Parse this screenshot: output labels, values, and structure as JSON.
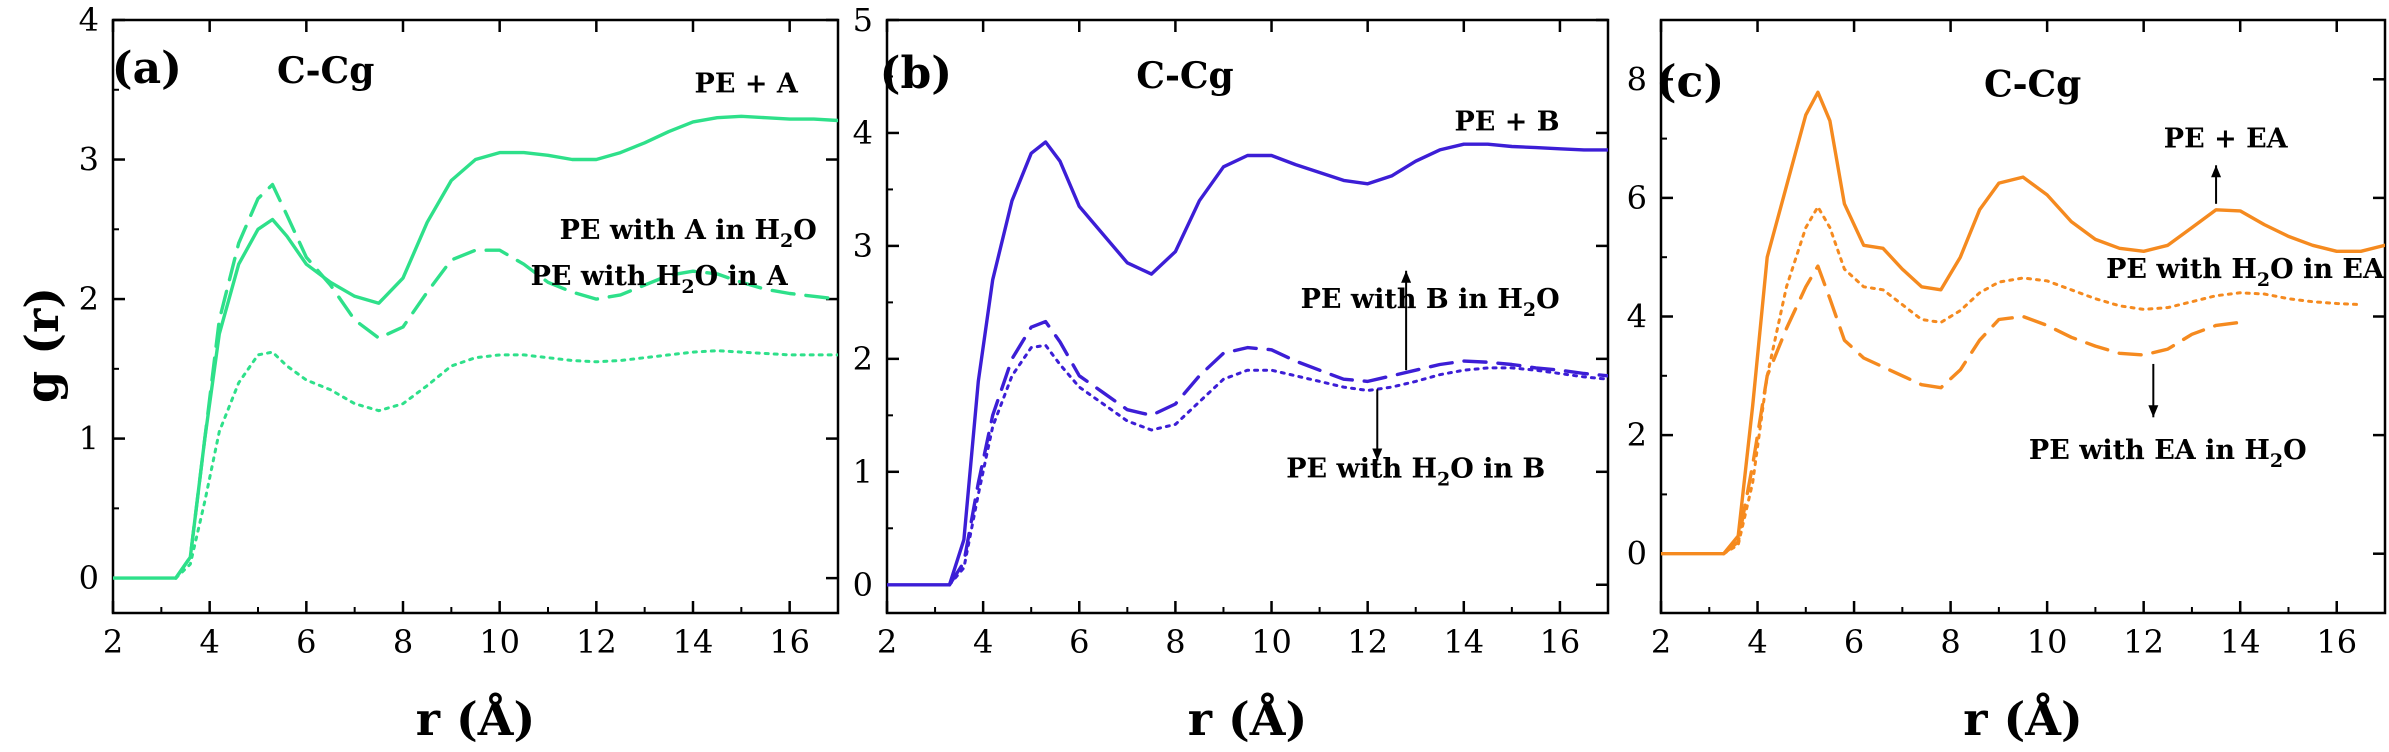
{
  "chart_data": [
    {
      "type": "line",
      "panel_label": "(a)",
      "title": "C-Cg",
      "xlabel": "r (Å)",
      "ylabel": "g (r)",
      "xlim": [
        2,
        17
      ],
      "ylim": [
        -0.25,
        4
      ],
      "xticks": [
        2,
        4,
        6,
        8,
        10,
        12,
        14,
        16
      ],
      "yticks": [
        0,
        1,
        2,
        3,
        4
      ],
      "color": "#2ee08a",
      "series": [
        {
          "name": "PE + A",
          "style": "solid",
          "x": [
            2,
            3.3,
            3.6,
            3.9,
            4.2,
            4.6,
            5.0,
            5.3,
            5.6,
            6.0,
            6.5,
            7.0,
            7.5,
            8.0,
            8.5,
            9.0,
            9.5,
            10.0,
            10.5,
            11.0,
            11.5,
            12.0,
            12.5,
            13.0,
            13.5,
            14.0,
            14.5,
            15.0,
            15.5,
            16.0,
            16.5,
            17.0
          ],
          "y": [
            0,
            0,
            0.15,
            1.0,
            1.75,
            2.25,
            2.5,
            2.57,
            2.45,
            2.25,
            2.12,
            2.02,
            1.97,
            2.15,
            2.55,
            2.85,
            3.0,
            3.05,
            3.05,
            3.03,
            3.0,
            3.0,
            3.05,
            3.12,
            3.2,
            3.27,
            3.3,
            3.31,
            3.3,
            3.29,
            3.29,
            3.28
          ]
        },
        {
          "name": "PE with A in H2O",
          "style": "dashed",
          "x": [
            3.3,
            3.6,
            3.9,
            4.2,
            4.6,
            5.0,
            5.3,
            5.6,
            6.0,
            6.5,
            7.0,
            7.5,
            8.0,
            8.5,
            9.0,
            9.5,
            10.0,
            10.5,
            11.0,
            11.5,
            12.0,
            12.5,
            13.0,
            13.5,
            14.0,
            14.5,
            15.0,
            15.5,
            16.0,
            16.5,
            17.0
          ],
          "y": [
            0,
            0.15,
            1.0,
            1.85,
            2.4,
            2.72,
            2.82,
            2.6,
            2.3,
            2.1,
            1.85,
            1.72,
            1.8,
            2.05,
            2.28,
            2.35,
            2.35,
            2.25,
            2.12,
            2.05,
            2.0,
            2.03,
            2.1,
            2.17,
            2.2,
            2.18,
            2.12,
            2.07,
            2.04,
            2.02,
            2.0
          ]
        },
        {
          "name": "PE with H2O in A",
          "style": "dotted",
          "x": [
            3.3,
            3.6,
            3.9,
            4.2,
            4.6,
            5.0,
            5.3,
            5.6,
            6.0,
            6.5,
            7.0,
            7.5,
            8.0,
            8.5,
            9.0,
            9.5,
            10.0,
            10.5,
            11.0,
            11.5,
            12.0,
            12.5,
            13.0,
            13.5,
            14.0,
            14.5,
            15.0,
            15.5,
            16.0,
            16.5,
            17.0
          ],
          "y": [
            0,
            0.1,
            0.55,
            1.05,
            1.4,
            1.6,
            1.62,
            1.52,
            1.42,
            1.35,
            1.25,
            1.2,
            1.25,
            1.38,
            1.52,
            1.58,
            1.6,
            1.6,
            1.58,
            1.56,
            1.55,
            1.56,
            1.58,
            1.6,
            1.62,
            1.63,
            1.62,
            1.61,
            1.6,
            1.6,
            1.6
          ]
        }
      ],
      "annotations": [
        {
          "text": "PE + A",
          "series": "PE + A"
        },
        {
          "text": "PE with A in H",
          "sub": "2",
          "tail": "O",
          "series": "PE with A in H2O"
        },
        {
          "text": "PE with H",
          "sub": "2",
          "tail": "O in A",
          "series": "PE with H2O in A"
        }
      ]
    },
    {
      "type": "line",
      "panel_label": "(b)",
      "title": "C-Cg",
      "xlabel": "r (Å)",
      "ylabel": "",
      "xlim": [
        2,
        17
      ],
      "ylim": [
        -0.25,
        5
      ],
      "xticks": [
        2,
        4,
        6,
        8,
        10,
        12,
        14,
        16
      ],
      "yticks": [
        0,
        1,
        2,
        3,
        4,
        5
      ],
      "color": "#3c1ed6",
      "series": [
        {
          "name": "PE + B",
          "style": "solid",
          "x": [
            2,
            3.3,
            3.6,
            3.9,
            4.2,
            4.6,
            5.0,
            5.3,
            5.6,
            6.0,
            6.5,
            7.0,
            7.5,
            8.0,
            8.5,
            9.0,
            9.5,
            10.0,
            10.5,
            11.0,
            11.5,
            12.0,
            12.5,
            13.0,
            13.5,
            14.0,
            14.5,
            15.0,
            15.5,
            16.0,
            16.5,
            17.0
          ],
          "y": [
            0,
            0,
            0.4,
            1.8,
            2.7,
            3.4,
            3.82,
            3.92,
            3.75,
            3.35,
            3.1,
            2.85,
            2.75,
            2.95,
            3.4,
            3.7,
            3.8,
            3.8,
            3.72,
            3.65,
            3.58,
            3.55,
            3.62,
            3.75,
            3.85,
            3.9,
            3.9,
            3.88,
            3.87,
            3.86,
            3.85,
            3.85
          ]
        },
        {
          "name": "PE with B in H2O",
          "style": "dashed",
          "x": [
            3.3,
            3.6,
            3.9,
            4.2,
            4.6,
            5.0,
            5.3,
            5.6,
            6.0,
            6.5,
            7.0,
            7.5,
            8.0,
            8.5,
            9.0,
            9.5,
            10.0,
            10.5,
            11.0,
            11.5,
            12.0,
            12.5,
            13.0,
            13.5,
            14.0,
            14.5,
            15.0,
            15.5,
            16.0,
            16.5,
            17.0
          ],
          "y": [
            0,
            0.2,
            0.9,
            1.5,
            2.0,
            2.28,
            2.33,
            2.15,
            1.85,
            1.7,
            1.55,
            1.5,
            1.6,
            1.85,
            2.05,
            2.1,
            2.08,
            1.98,
            1.9,
            1.82,
            1.8,
            1.85,
            1.9,
            1.95,
            1.98,
            1.97,
            1.95,
            1.92,
            1.9,
            1.87,
            1.85
          ]
        },
        {
          "name": "PE with H2O in B",
          "style": "dotted",
          "x": [
            3.3,
            3.6,
            3.9,
            4.2,
            4.6,
            5.0,
            5.3,
            5.6,
            6.0,
            6.5,
            7.0,
            7.5,
            8.0,
            8.5,
            9.0,
            9.5,
            10.0,
            10.5,
            11.0,
            11.5,
            12.0,
            12.5,
            13.0,
            13.5,
            14.0,
            14.5,
            15.0,
            15.5,
            16.0,
            16.5,
            17.0
          ],
          "y": [
            0,
            0.15,
            0.8,
            1.4,
            1.85,
            2.1,
            2.12,
            1.95,
            1.75,
            1.6,
            1.45,
            1.37,
            1.42,
            1.62,
            1.82,
            1.9,
            1.9,
            1.85,
            1.8,
            1.75,
            1.72,
            1.75,
            1.8,
            1.86,
            1.9,
            1.92,
            1.92,
            1.9,
            1.87,
            1.84,
            1.82
          ]
        }
      ],
      "annotations": [
        {
          "text": "PE + B",
          "series": "PE + B"
        },
        {
          "text": "PE with B in H",
          "sub": "2",
          "tail": "O",
          "series": "PE with B in H2O"
        },
        {
          "text": "PE with H",
          "sub": "2",
          "tail": "O in B",
          "series": "PE with H2O in B"
        }
      ]
    },
    {
      "type": "line",
      "panel_label": "(c)",
      "title": "C-Cg",
      "xlabel": "r (Å)",
      "ylabel": "",
      "xlim": [
        2,
        17
      ],
      "ylim": [
        -1,
        9
      ],
      "xticks": [
        2,
        4,
        6,
        8,
        10,
        12,
        14,
        16
      ],
      "yticks": [
        0,
        2,
        4,
        6,
        8
      ],
      "color": "#f58a1f",
      "series": [
        {
          "name": "PE + EA",
          "style": "solid",
          "x": [
            2,
            3.3,
            3.6,
            3.9,
            4.2,
            4.6,
            5.0,
            5.25,
            5.5,
            5.8,
            6.2,
            6.6,
            7.0,
            7.4,
            7.8,
            8.2,
            8.6,
            9.0,
            9.5,
            10.0,
            10.5,
            11.0,
            11.5,
            12.0,
            12.5,
            13.0,
            13.5,
            14.0,
            14.5,
            15.0,
            15.5,
            16.0,
            16.5,
            17.0
          ],
          "y": [
            0,
            0,
            0.3,
            2.5,
            5.0,
            6.2,
            7.4,
            7.78,
            7.3,
            5.9,
            5.2,
            5.15,
            4.8,
            4.5,
            4.45,
            5.0,
            5.8,
            6.25,
            6.35,
            6.05,
            5.6,
            5.3,
            5.15,
            5.1,
            5.2,
            5.5,
            5.8,
            5.78,
            5.55,
            5.35,
            5.2,
            5.1,
            5.1,
            5.2
          ]
        },
        {
          "name": "PE with EA in H2O",
          "style": "dashed",
          "x": [
            3.3,
            3.6,
            3.9,
            4.2,
            4.6,
            5.0,
            5.25,
            5.5,
            5.8,
            6.2,
            6.6,
            7.0,
            7.4,
            7.8,
            8.2,
            8.6,
            9.0,
            9.5,
            10.0,
            10.5,
            11.0,
            11.5,
            12.0,
            12.5,
            13.0,
            13.5,
            14.0
          ],
          "y": [
            0,
            0.2,
            1.5,
            3.0,
            3.8,
            4.5,
            4.85,
            4.3,
            3.6,
            3.3,
            3.15,
            3.0,
            2.85,
            2.8,
            3.1,
            3.6,
            3.95,
            4.0,
            3.85,
            3.65,
            3.5,
            3.38,
            3.35,
            3.45,
            3.7,
            3.85,
            3.9
          ]
        },
        {
          "name": "PE with H2O in EA",
          "style": "dotted",
          "x": [
            3.3,
            3.6,
            3.9,
            4.2,
            4.6,
            5.0,
            5.25,
            5.5,
            5.8,
            6.2,
            6.6,
            7.0,
            7.4,
            7.8,
            8.2,
            8.6,
            9.0,
            9.5,
            10.0,
            10.5,
            11.0,
            11.5,
            12.0,
            12.5,
            13.0,
            13.5,
            14.0,
            14.5,
            15.0,
            15.5,
            16.0,
            16.5
          ],
          "y": [
            0,
            0.15,
            1.2,
            3.0,
            4.5,
            5.5,
            5.85,
            5.5,
            4.8,
            4.5,
            4.45,
            4.2,
            3.95,
            3.9,
            4.1,
            4.4,
            4.58,
            4.65,
            4.6,
            4.45,
            4.3,
            4.18,
            4.12,
            4.15,
            4.25,
            4.35,
            4.4,
            4.38,
            4.3,
            4.25,
            4.22,
            4.2
          ]
        }
      ],
      "annotations": [
        {
          "text": "PE + EA",
          "series": "PE + EA"
        },
        {
          "text": "PE with H",
          "sub": "2",
          "tail": "O in EA",
          "series": "PE with H2O in EA"
        },
        {
          "text": "PE with EA in H",
          "sub": "2",
          "tail": "O",
          "series": "PE with EA in H2O"
        }
      ]
    }
  ]
}
